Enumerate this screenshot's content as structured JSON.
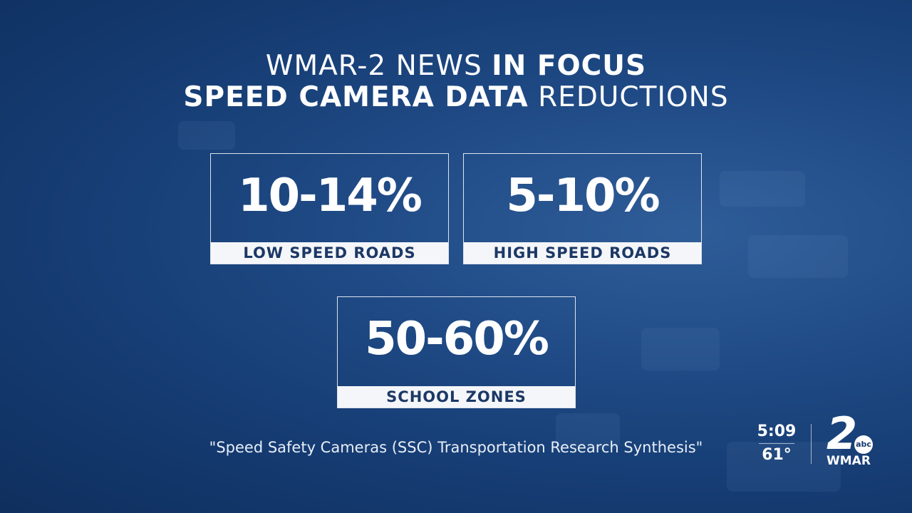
{
  "header": {
    "line1_regular": "WMAR-2 NEWS",
    "line1_bold": "IN FOCUS",
    "line2_bold": "SPEED CAMERA DATA",
    "line2_regular": "REDUCTIONS"
  },
  "stats": [
    {
      "value": "10-14%",
      "label": "LOW SPEED ROADS"
    },
    {
      "value": "5-10%",
      "label": "HIGH SPEED ROADS"
    },
    {
      "value": "50-60%",
      "label": "SCHOOL ZONES"
    }
  ],
  "source": "\"Speed Safety Cameras (SSC) Transportation Research Synthesis\"",
  "bug": {
    "time": "5:09",
    "temperature": "61°",
    "logo_number": "2",
    "logo_network": "abc",
    "logo_station": "WMAR"
  }
}
